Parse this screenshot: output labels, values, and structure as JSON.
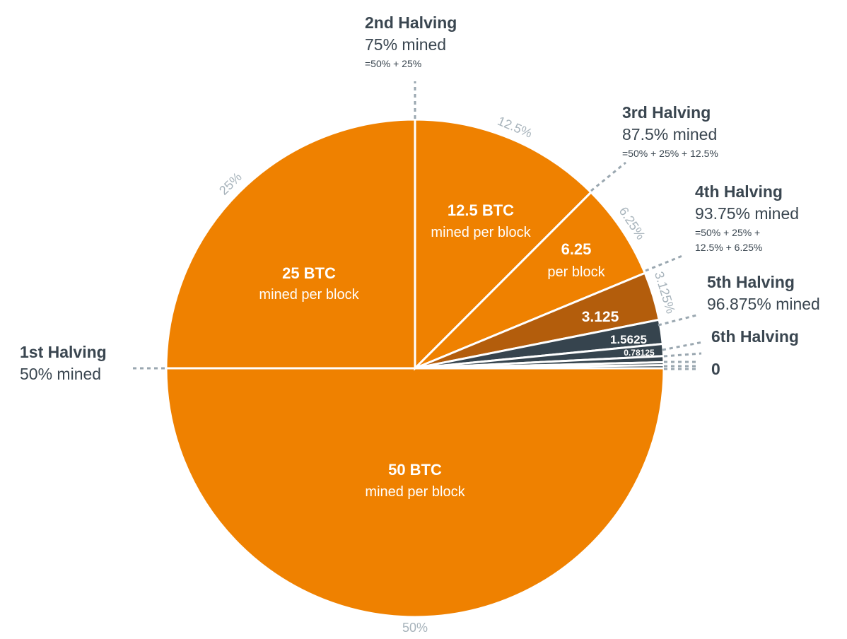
{
  "chart_data": {
    "type": "pie",
    "colors": {
      "orange": "#ef8100",
      "dark_orange": "#b35d0c",
      "slate": "#36444e",
      "annotation_text": "#3a4650",
      "percent_text": "#a7b3bb"
    },
    "slices": [
      {
        "value": 50,
        "percent_label": "50%",
        "label": "50 BTC",
        "sublabel": "mined per block",
        "color": "#ef8100"
      },
      {
        "value": 25,
        "percent_label": "25%",
        "label": "25 BTC",
        "sublabel": "mined per block",
        "color": "#ef8100"
      },
      {
        "value": 12.5,
        "percent_label": "12.5%",
        "label": "12.5 BTC",
        "sublabel": "mined per block",
        "color": "#ef8100"
      },
      {
        "value": 6.25,
        "percent_label": "6.25%",
        "label": "6.25",
        "sublabel": "per block",
        "color": "#ef8100"
      },
      {
        "value": 3.125,
        "percent_label": "3.125%",
        "label": "",
        "sublabel": "",
        "color": "#b35d0c"
      },
      {
        "value": 1.5625,
        "percent_label": "",
        "label": "3.125",
        "sublabel": "",
        "color": "#36444e"
      },
      {
        "value": 0.78125,
        "percent_label": "",
        "label": "1.5625",
        "sublabel": "",
        "color": "#36444e"
      },
      {
        "value": 0.390625,
        "percent_label": "",
        "label": "0.78125",
        "sublabel": "",
        "color": "#36444e"
      },
      {
        "value": 0.1953125,
        "percent_label": "",
        "label": "",
        "sublabel": "",
        "color": "#36444e"
      },
      {
        "value": 0.1953125,
        "percent_label": "",
        "label": "",
        "sublabel": "",
        "color": "#36444e"
      }
    ],
    "annotations": [
      {
        "title": "1st Halving",
        "mined": "50% mined",
        "formula": []
      },
      {
        "title": "2nd Halving",
        "mined": "75% mined",
        "formula": [
          "=50% + 25%"
        ]
      },
      {
        "title": "3rd Halving",
        "mined": "87.5% mined",
        "formula": [
          "=50% + 25% + 12.5%"
        ]
      },
      {
        "title": "4th Halving",
        "mined": "93.75% mined",
        "formula": [
          "=50% + 25% +",
          "12.5% + 6.25%"
        ]
      },
      {
        "title": "5th Halving",
        "mined": "96.875% mined",
        "formula": []
      },
      {
        "title": "6th Halving",
        "mined": "",
        "formula": []
      },
      {
        "title": "0",
        "mined": "",
        "formula": []
      }
    ]
  }
}
